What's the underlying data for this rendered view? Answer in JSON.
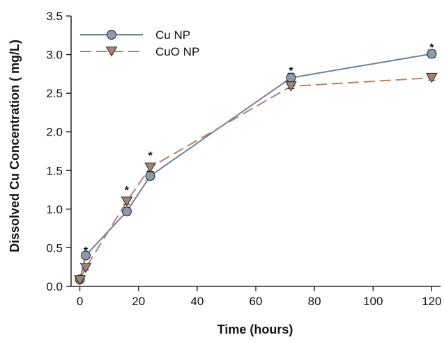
{
  "chart_data": {
    "type": "line",
    "title": "",
    "xlabel": "Time (hours)",
    "ylabel": "Dissolved Cu Concentration ( mg/L)",
    "xlim": [
      -3,
      123
    ],
    "ylim": [
      0,
      3.5
    ],
    "xticks": [
      "0",
      "20",
      "40",
      "60",
      "80",
      "100",
      "120"
    ],
    "yticks": [
      "0.0",
      "0.5",
      "1.0",
      "1.5",
      "2.0",
      "2.5",
      "3.0",
      "3.5"
    ],
    "grid": false,
    "legend": "top-left",
    "series": [
      {
        "name": "Cu NP",
        "color": "#6f7f97",
        "marker": "circle",
        "marker_color": "#8e99ab",
        "linestyle": "solid",
        "x": [
          0,
          2,
          16,
          24,
          72,
          120
        ],
        "y": [
          0.09,
          0.4,
          0.97,
          1.43,
          2.7,
          3.01
        ],
        "err": [
          0.02,
          0.03,
          0.05,
          0.05,
          0.06,
          0.05
        ]
      },
      {
        "name": "CuO NP",
        "color": "#b5806b",
        "marker": "triangle-down",
        "marker_color": "#a08577",
        "linestyle": "dashed",
        "x": [
          0,
          2,
          16,
          24,
          72,
          120
        ],
        "y": [
          0.08,
          0.24,
          1.1,
          1.54,
          2.59,
          2.7
        ],
        "err": [
          0.02,
          0.03,
          0.04,
          0.05,
          0.03,
          0.03
        ]
      }
    ],
    "annotations": [
      {
        "text": "*",
        "x": 2,
        "y": 0.47
      },
      {
        "text": "*",
        "x": 16,
        "y": 1.25
      },
      {
        "text": "*",
        "x": 24,
        "y": 1.7
      },
      {
        "text": "*",
        "x": 72,
        "y": 2.8
      },
      {
        "text": "*",
        "x": 120,
        "y": 3.1
      }
    ]
  }
}
